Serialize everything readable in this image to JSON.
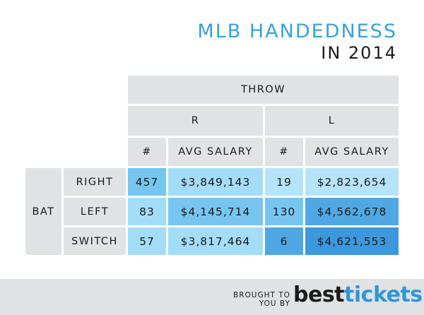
{
  "title": {
    "line1": "MLB HANDEDNESS",
    "line2": "IN 2014"
  },
  "chart_data": {
    "type": "table",
    "title": "MLB HANDEDNESS IN 2014",
    "column_group_label": "THROW",
    "throw_groups": [
      "R",
      "L"
    ],
    "column_headers": [
      "#",
      "AVG SALARY",
      "#",
      "AVG SALARY"
    ],
    "row_group_label": "BAT",
    "rows": [
      {
        "bat": "RIGHT",
        "r_count": "457",
        "r_salary": "$3,849,143",
        "l_count": "19",
        "l_salary": "$2,823,654"
      },
      {
        "bat": "LEFT",
        "r_count": "83",
        "r_salary": "$4,145,714",
        "l_count": "130",
        "l_salary": "$4,562,678"
      },
      {
        "bat": "SWITCH",
        "r_count": "57",
        "r_salary": "$3,817,464",
        "l_count": "6",
        "l_salary": "$4,621,553"
      }
    ],
    "colors": {
      "header": "#e1e2e3",
      "lightest": "#b5e4fa",
      "light": "#a3dcf7",
      "medium": "#77c4ef",
      "dark": "#4fa8e4",
      "darkest": "#3c98dd"
    }
  },
  "footer": {
    "brought_line1": "BROUGHT TO",
    "brought_line2": "YOU BY",
    "logo_part1": "best",
    "logo_part2": "tickets"
  }
}
